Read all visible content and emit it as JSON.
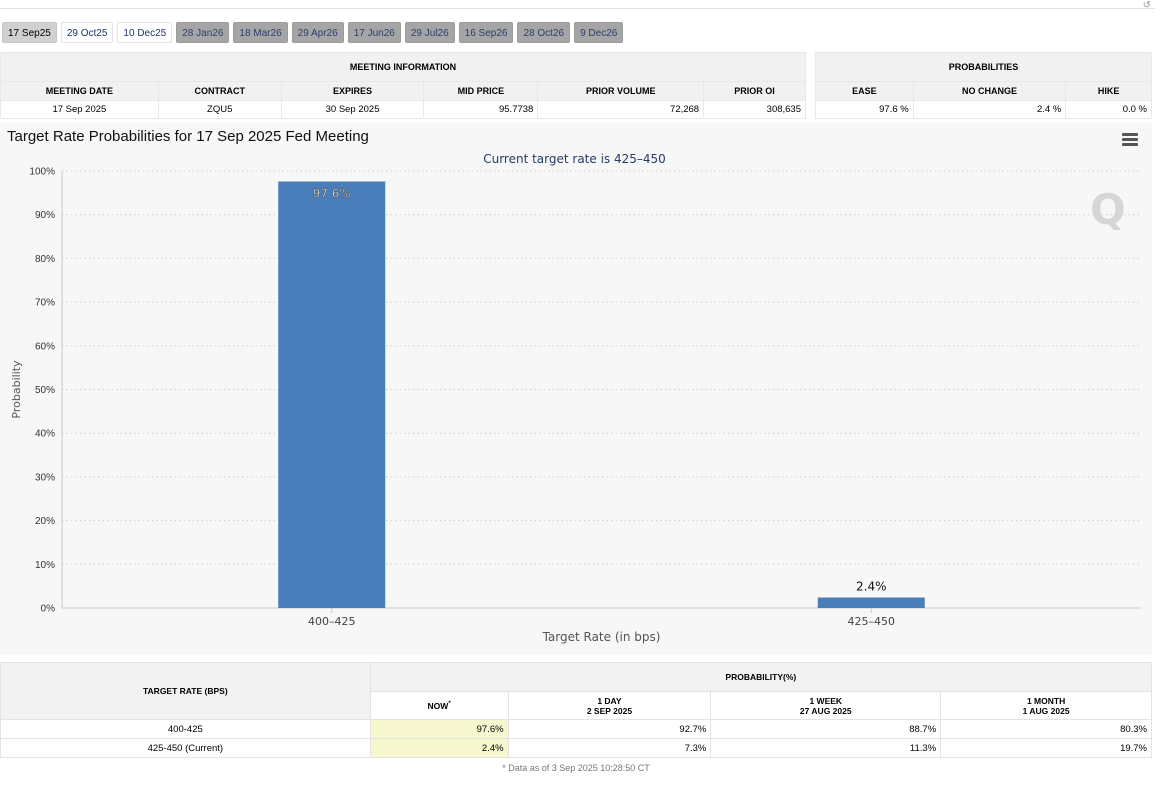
{
  "tabs": [
    {
      "label": "17 Sep25",
      "state": "active"
    },
    {
      "label": "29 Oct25",
      "state": "open"
    },
    {
      "label": "10 Dec25",
      "state": "open"
    },
    {
      "label": "28 Jan26",
      "state": "future"
    },
    {
      "label": "18 Mar26",
      "state": "future"
    },
    {
      "label": "29 Apr26",
      "state": "future"
    },
    {
      "label": "17 Jun26",
      "state": "future"
    },
    {
      "label": "29 Jul26",
      "state": "future"
    },
    {
      "label": "16 Sep26",
      "state": "future"
    },
    {
      "label": "28 Oct26",
      "state": "future"
    },
    {
      "label": "9 Dec26",
      "state": "future"
    }
  ],
  "meeting_info": {
    "group_title": "MEETING INFORMATION",
    "headers": [
      "MEETING DATE",
      "CONTRACT",
      "EXPIRES",
      "MID PRICE",
      "PRIOR VOLUME",
      "PRIOR OI"
    ],
    "row": [
      "17 Sep 2025",
      "ZQU5",
      "30 Sep 2025",
      "95.7738",
      "72,268",
      "308,635"
    ]
  },
  "probabilities": {
    "group_title": "PROBABILITIES",
    "headers": [
      "EASE",
      "NO CHANGE",
      "HIKE"
    ],
    "row": [
      "97.6 %",
      "2.4 %",
      "0.0 %"
    ]
  },
  "chart_title": "Target Rate Probabilities for 17 Sep 2025 Fed Meeting",
  "chart_data": {
    "type": "bar",
    "title": "Target Rate Probabilities for 17 Sep 2025 Fed Meeting",
    "subtitle": "Current target rate is 425–450",
    "categories": [
      "400–425",
      "425–450"
    ],
    "values": [
      97.6,
      2.4
    ],
    "value_labels": [
      "97.6%",
      "2.4%"
    ],
    "xlabel": "Target Rate (in bps)",
    "ylabel": "Probability",
    "ylim": [
      0,
      100
    ],
    "yticks": [
      "0%",
      "10%",
      "20%",
      "30%",
      "40%",
      "50%",
      "60%",
      "70%",
      "80%",
      "90%",
      "100%"
    ],
    "grid": true,
    "bar_color": "#4a7eba"
  },
  "logo_text": "Q",
  "rate_table": {
    "col_target": "TARGET RATE (BPS)",
    "col_prob": "PROBABILITY(%)",
    "now_label": "NOW",
    "now_mark": "*",
    "periods": [
      {
        "line1": "1 DAY",
        "line2": "2 SEP 2025"
      },
      {
        "line1": "1 WEEK",
        "line2": "27 AUG 2025"
      },
      {
        "line1": "1 MONTH",
        "line2": "1 AUG 2025"
      }
    ],
    "rows": [
      {
        "rate": "400-425",
        "now": "97.6%",
        "day": "92.7%",
        "week": "88.7%",
        "month": "80.3%"
      },
      {
        "rate": "425-450 (Current)",
        "now": "2.4%",
        "day": "7.3%",
        "week": "11.3%",
        "month": "19.7%"
      }
    ],
    "footnote": "* Data as of 3 Sep 2025 10:28:50 CT"
  },
  "colors": {
    "bar": "#4a7eba",
    "now_highlight": "#f7f7cf",
    "future_tab": "#a5a5a5"
  }
}
